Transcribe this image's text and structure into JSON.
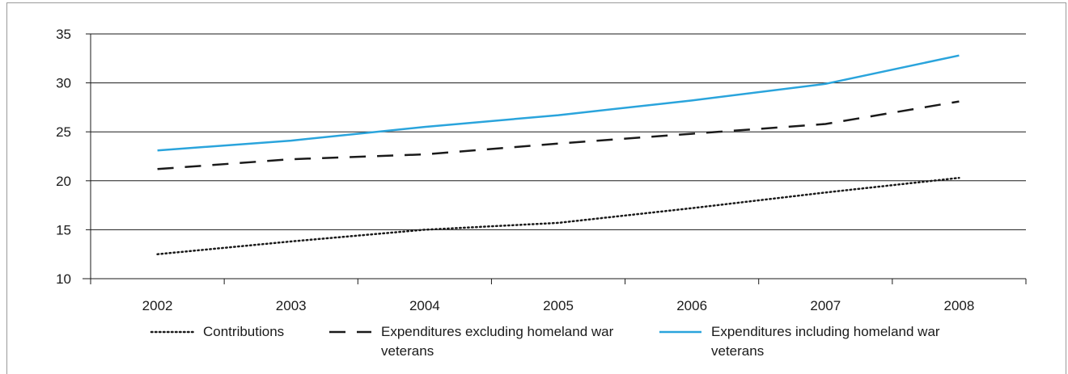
{
  "chart_data": {
    "type": "line",
    "title": "",
    "xlabel": "",
    "ylabel": "",
    "categories": [
      "2002",
      "2003",
      "2004",
      "2005",
      "2006",
      "2007",
      "2008"
    ],
    "ylim": [
      10,
      35
    ],
    "yticks": [
      "10",
      "15",
      "20",
      "25",
      "30",
      "35"
    ],
    "grid": true,
    "legend_position": "bottom",
    "series": [
      {
        "name": "Contributions",
        "values": [
          12.5,
          13.8,
          15.0,
          15.7,
          17.2,
          18.8,
          20.3
        ],
        "color": "#1a1a1a",
        "style": "dotted"
      },
      {
        "name": "Expenditures excluding homeland war veterans",
        "values": [
          21.2,
          22.2,
          22.7,
          23.8,
          24.8,
          25.8,
          28.1
        ],
        "color": "#1a1a1a",
        "style": "dashed"
      },
      {
        "name": "Expenditures including homeland war veterans",
        "values": [
          23.1,
          24.1,
          25.5,
          26.7,
          28.2,
          29.9,
          32.8
        ],
        "color": "#2aa4dc",
        "style": "solid"
      }
    ]
  }
}
